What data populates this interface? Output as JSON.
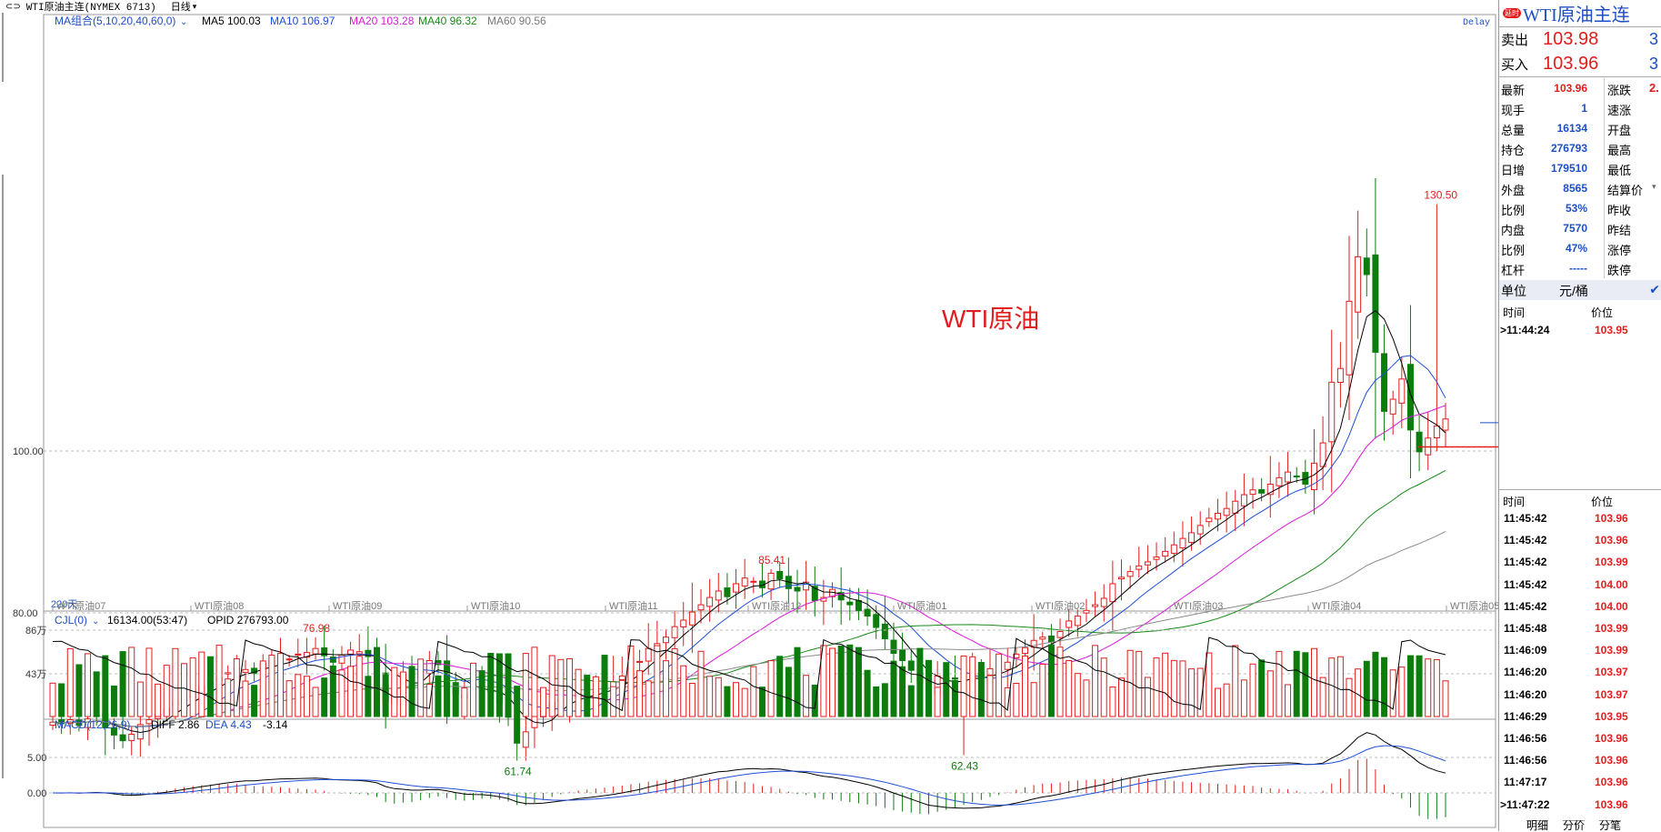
{
  "header": {
    "link_icon": "link-icon",
    "title": "WTI原油主连(NYMEX 6713)",
    "period": "日线",
    "delay": "Delay"
  },
  "ma_legend": {
    "label": "MA组合(5,10,20,40,60,0)",
    "items": [
      {
        "text": "MA5 100.03",
        "color": "#000000"
      },
      {
        "text": "MA10 106.97",
        "color": "#1f4fd6"
      },
      {
        "text": "MA20 103.28",
        "color": "#d81ad8"
      },
      {
        "text": "MA40 96.32",
        "color": "#1a8a1a"
      },
      {
        "text": "MA60 90.56",
        "color": "#7a7a7a"
      }
    ]
  },
  "watermark": "WTI原油",
  "days_label": "220天",
  "colors": {
    "up": "#e21d1d",
    "down": "#0c7d0c",
    "ma5": "#000000",
    "ma10": "#1f4fd6",
    "ma20": "#d81ad8",
    "ma40": "#1a8a1a",
    "ma60": "#8c8c8c",
    "grid": "#bdbdbd"
  },
  "chart_data": {
    "type": "candlestick",
    "y_ticks": [
      "100.00",
      "80.00"
    ],
    "peak_labels": [
      {
        "text": "76.98",
        "value": 76.98,
        "index": 30
      },
      {
        "text": "85.41",
        "value": 85.41,
        "index": 82
      },
      {
        "text": "130.50",
        "value": 130.5,
        "index": 158
      },
      {
        "text": "62.43",
        "value": 62.43,
        "index": 104
      },
      {
        "text": "61.74",
        "value": 61.74,
        "index": 53
      }
    ],
    "contract_labels": [
      "WTI原油07",
      "WTI原油08",
      "WTI原油09",
      "WTI原油10",
      "WTI原油11",
      "WTI原油12",
      "WTI原油01",
      "WTI原油02",
      "WTI原油03",
      "WTI原油04",
      "WTI原油05"
    ],
    "price_range": [
      58,
      133
    ],
    "closes": [
      66.5,
      66.3,
      66.8,
      66.1,
      66.9,
      67.2,
      65.8,
      64.9,
      64.2,
      65.0,
      66.2,
      66.8,
      67.5,
      68.2,
      69.0,
      69.6,
      70.3,
      70.9,
      71.3,
      72.0,
      72.6,
      73.2,
      73.0,
      72.5,
      73.8,
      74.1,
      74.6,
      74.3,
      74.9,
      75.1,
      75.6,
      74.7,
      73.9,
      74.8,
      75.4,
      75.2,
      74.6,
      73.2,
      69.0,
      70.5,
      72.3,
      71.8,
      73.0,
      74.1,
      73.6,
      71.1,
      70.0,
      69.8,
      70.9,
      71.4,
      70.2,
      68.8,
      67.1,
      63.9,
      65.3,
      67.4,
      68.1,
      69.0,
      69.3,
      69.6,
      70.1,
      69.8,
      70.4,
      70.8,
      71.5,
      72.2,
      73.3,
      74.0,
      75.6,
      76.2,
      77.0,
      78.3,
      79.1,
      80.1,
      81.0,
      81.9,
      82.7,
      82.0,
      83.6,
      84.3,
      83.9,
      83.1,
      84.9,
      84.2,
      83.0,
      82.7,
      83.8,
      81.5,
      81.9,
      82.9,
      81.6,
      81.0,
      80.3,
      79.6,
      78.2,
      76.8,
      75.0,
      74.1,
      72.9,
      71.3,
      70.5,
      72.2,
      71.5,
      71.9,
      71.6,
      72.4,
      72.0,
      73.1,
      72.8,
      73.9,
      74.9,
      75.7,
      76.6,
      77.0,
      76.4,
      77.7,
      79.0,
      79.6,
      80.3,
      81.0,
      81.8,
      83.6,
      84.4,
      85.1,
      85.8,
      86.3,
      86.9,
      87.6,
      88.4,
      89.2,
      89.9,
      90.8,
      91.7,
      92.3,
      92.9,
      93.8,
      94.6,
      95.2,
      94.8,
      95.9,
      96.7,
      97.4,
      96.8,
      95.9,
      98.5,
      101.0,
      108.5,
      110.2,
      118.5,
      124.0,
      121.8,
      112.2,
      104.9,
      106.4,
      108.9,
      102.6,
      99.9,
      101.6,
      103.1,
      103.96
    ],
    "volume_ticks": [
      "86万",
      "43万"
    ],
    "volume": {
      "label": "CJL(0)",
      "value_text": "16134.00(53:47)",
      "opid_text": "OPID 276793.00"
    },
    "macd": {
      "label": "MACD(12,26,9)",
      "diff_text": "DIFF 2.86",
      "dea_text": "DEA 4.43",
      "macd_text": "-3.14",
      "ticks": [
        "5.00",
        "0.00"
      ]
    }
  },
  "panel": {
    "badge": "延时",
    "title": "WTI原油主连",
    "sell": {
      "label": "卖出",
      "price": "103.98",
      "qty": "3"
    },
    "buy": {
      "label": "买入",
      "price": "103.96",
      "qty": "3"
    },
    "stats": [
      {
        "l": "最新",
        "v": "103.96",
        "r": "涨跌",
        "rv": "2."
      },
      {
        "l": "现手",
        "v": "1",
        "r": "速涨",
        "rv": ""
      },
      {
        "l": "总量",
        "v": "16134",
        "r": "开盘",
        "rv": ""
      },
      {
        "l": "持仓",
        "v": "276793",
        "r": "最高",
        "rv": ""
      },
      {
        "l": "日增",
        "v": "179510",
        "r": "最低",
        "rv": ""
      },
      {
        "l": "外盘",
        "v": "8565",
        "r": "结算价",
        "rv": ""
      },
      {
        "l": "比例",
        "v": "53%",
        "r": "昨收",
        "rv": ""
      },
      {
        "l": "内盘",
        "v": "7570",
        "r": "昨结",
        "rv": ""
      },
      {
        "l": "比例",
        "v": "47%",
        "r": "涨停",
        "rv": ""
      },
      {
        "l": "杠杆",
        "v": "-----",
        "r": "跌停",
        "rv": ""
      }
    ],
    "unit": {
      "label": "单位",
      "value": "元/桶"
    },
    "ticks_header": {
      "time": "时间",
      "price": "价位"
    },
    "recent_tick": {
      "time": ">11:44:24",
      "price": "103.95"
    },
    "ticks": [
      {
        "time": "11:45:42",
        "price": "103.96"
      },
      {
        "time": "11:45:42",
        "price": "103.96"
      },
      {
        "time": "11:45:42",
        "price": "103.99"
      },
      {
        "time": "11:45:42",
        "price": "104.00"
      },
      {
        "time": "11:45:42",
        "price": "104.00"
      },
      {
        "time": "11:45:48",
        "price": "103.99"
      },
      {
        "time": "11:46:09",
        "price": "103.99"
      },
      {
        "time": "11:46:20",
        "price": "103.97"
      },
      {
        "time": "11:46:20",
        "price": "103.97"
      },
      {
        "time": "11:46:29",
        "price": "103.95"
      },
      {
        "time": "11:46:56",
        "price": "103.96"
      },
      {
        "time": "11:46:56",
        "price": "103.96"
      },
      {
        "time": "11:47:17",
        "price": "103.96"
      },
      {
        "time": ">11:47:22",
        "price": "103.96"
      }
    ],
    "bottom_tabs": [
      "明细",
      "分价",
      "分笔"
    ]
  }
}
